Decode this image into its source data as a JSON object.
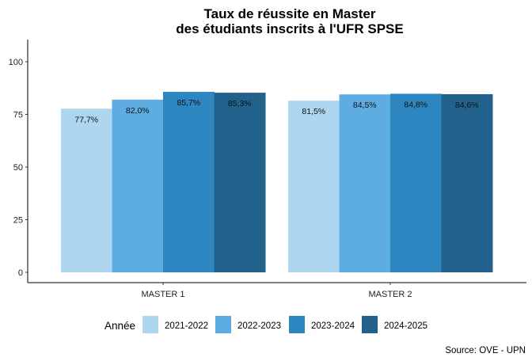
{
  "chart_data": {
    "type": "bar",
    "title": "Taux de réussite en Master\ndes étudiants inscrits à l'UFR SPSE",
    "title_lines": [
      "Taux de réussite en Master",
      "des étudiants inscrits à l'UFR SPSE"
    ],
    "xlabel": "",
    "ylabel": "",
    "categories": [
      "MASTER 1",
      "MASTER 2"
    ],
    "series": [
      {
        "name": "2021-2022",
        "color": "#AED6F1",
        "values": [
          77.7,
          81.5
        ],
        "labels": [
          "77,7%",
          "81,5%"
        ]
      },
      {
        "name": "2022-2023",
        "color": "#5DADE2",
        "values": [
          82.0,
          84.5
        ],
        "labels": [
          "82,0%",
          "84,5%"
        ]
      },
      {
        "name": "2023-2024",
        "color": "#2E86C1",
        "values": [
          85.7,
          84.8
        ],
        "labels": [
          "85,7%",
          "84,8%"
        ]
      },
      {
        "name": "2024-2025",
        "color": "#21618C",
        "values": [
          85.3,
          84.6
        ],
        "labels": [
          "85,3%",
          "84,6%"
        ]
      }
    ],
    "ylim": [
      0,
      110
    ],
    "yticks": [
      0,
      25,
      50,
      75,
      100
    ],
    "ytick_labels": [
      "0",
      "25",
      "50",
      "75",
      "100"
    ],
    "grid": false,
    "legend": {
      "title": "Année",
      "position": "bottom"
    },
    "caption": "Source: OVE - UPN"
  }
}
